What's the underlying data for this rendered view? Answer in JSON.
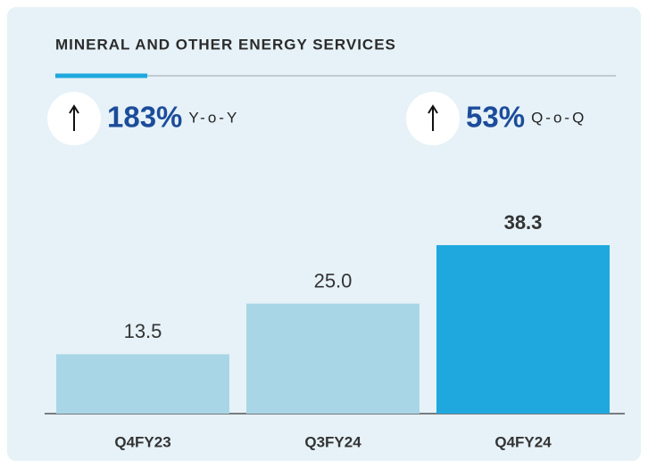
{
  "chart_data": {
    "type": "bar",
    "title": "MINERAL AND OTHER ENERGY SERVICES",
    "kpis": [
      {
        "value": "183%",
        "label": "Y-o-Y"
      },
      {
        "value": "53%",
        "label": "Q-o-Q"
      }
    ],
    "categories": [
      "Q4FY23",
      "Q3FY24",
      "Q4FY24"
    ],
    "values": [
      13.5,
      25.0,
      38.3
    ],
    "value_labels": [
      "13.5",
      "25.0",
      "38.3"
    ],
    "colors": [
      "#a9d6e7",
      "#a9d6e7",
      "#1fa8de"
    ]
  }
}
